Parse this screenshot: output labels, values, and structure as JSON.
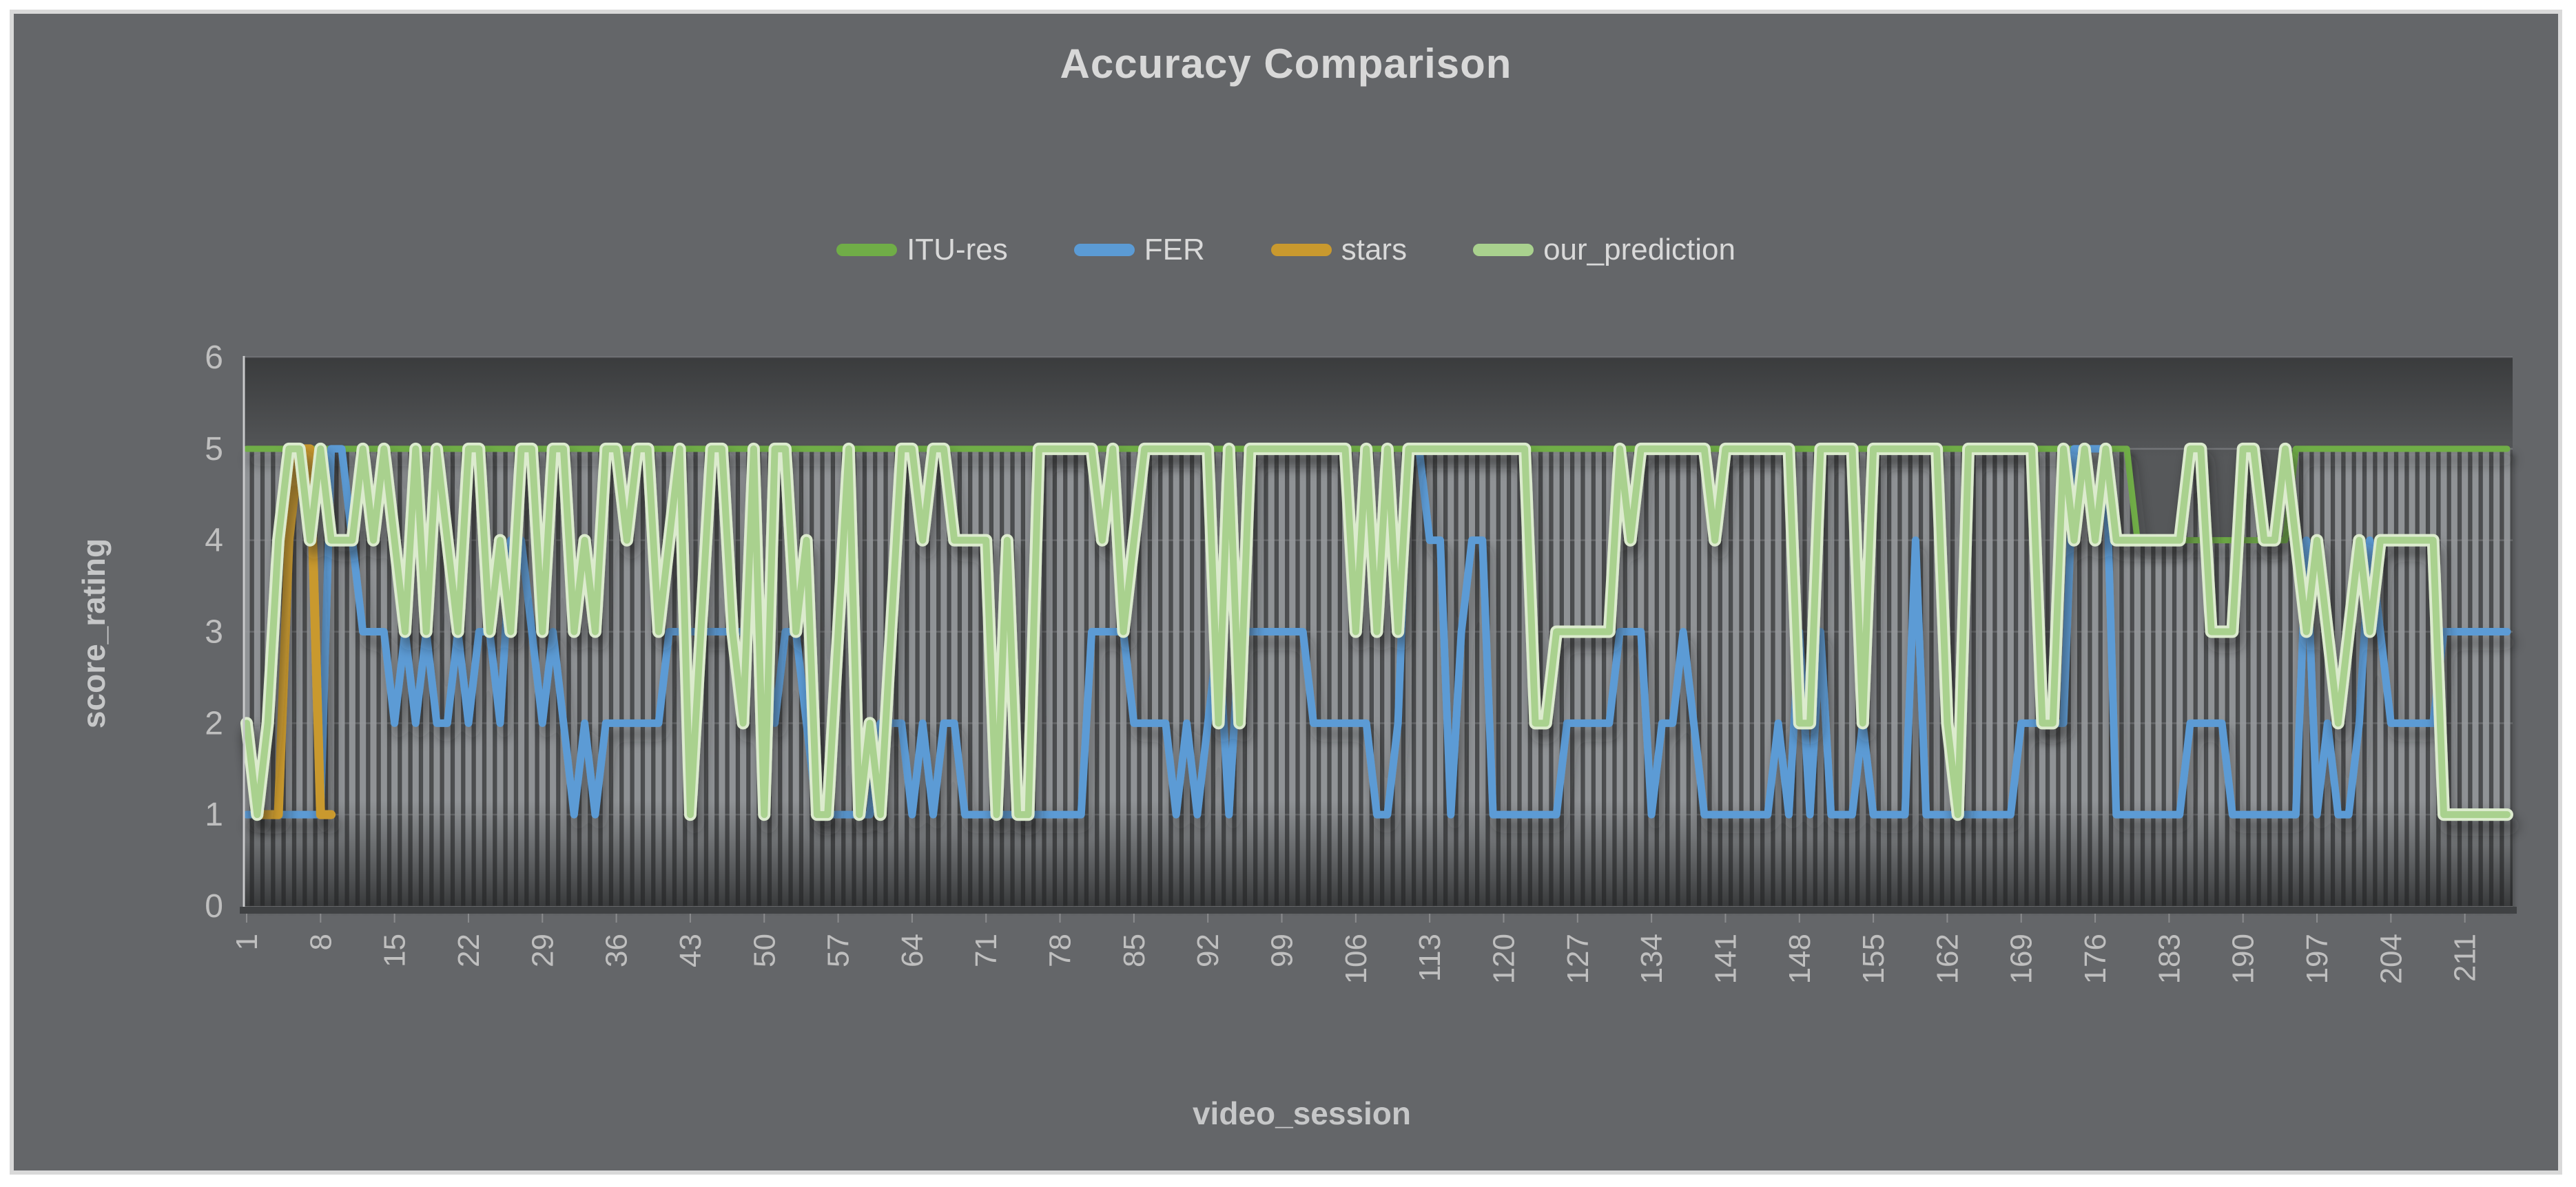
{
  "header": {
    "title": "Accuracy Comparison"
  },
  "axes": {
    "x_title": "video_session",
    "y_title": "score_rating",
    "y_ticks": [
      0,
      1,
      2,
      3,
      4,
      5,
      6
    ],
    "x_ticks": [
      1,
      8,
      15,
      22,
      29,
      36,
      43,
      50,
      57,
      64,
      71,
      78,
      85,
      92,
      99,
      106,
      113,
      120,
      127,
      134,
      141,
      148,
      155,
      162,
      169,
      176,
      183,
      190,
      197,
      204,
      211
    ]
  },
  "legend": {
    "items": [
      {
        "label": "ITU-res",
        "color": "#70AD47"
      },
      {
        "label": "FER",
        "color": "#5B9BD5"
      },
      {
        "label": "stars",
        "color": "#C9992E"
      },
      {
        "label": "our_prediction",
        "color": "#A9D18E"
      }
    ]
  },
  "colors": {
    "chart_background": "#646669",
    "plot_background": "#56585A",
    "dropline": "#96989B",
    "gridline": "#77797C",
    "title_text": "#D8D8D8",
    "tick_text": "#BFBFBF",
    "axis_title_text": "#C6C7C8",
    "x_axis_line": "#3F4143",
    "y_axis_line": "#C8C9CB",
    "frame_border": "#D9D9D9",
    "prediction_casing": "#DCEBCE"
  },
  "chart_data": {
    "type": "line",
    "title": "Accuracy Comparison",
    "xlabel": "video_session",
    "ylabel": "score_rating",
    "x_start": 1,
    "x_end": 215,
    "ylim": [
      0,
      6
    ],
    "grid": true,
    "legend_position": "top",
    "background_style": "category droplines from series maximum to x-axis",
    "series": [
      {
        "name": "ITU-res",
        "color": "#70AD47",
        "values": [
          5,
          5,
          5,
          5,
          5,
          5,
          5,
          5,
          5,
          5,
          5,
          5,
          5,
          5,
          5,
          5,
          5,
          5,
          5,
          5,
          5,
          5,
          5,
          5,
          5,
          5,
          5,
          5,
          5,
          5,
          5,
          5,
          5,
          5,
          5,
          5,
          5,
          5,
          5,
          5,
          5,
          5,
          5,
          5,
          5,
          5,
          5,
          5,
          5,
          5,
          5,
          5,
          5,
          5,
          5,
          5,
          5,
          5,
          5,
          5,
          5,
          5,
          5,
          5,
          5,
          5,
          5,
          5,
          5,
          5,
          5,
          5,
          5,
          5,
          5,
          5,
          5,
          5,
          5,
          5,
          5,
          5,
          5,
          5,
          5,
          5,
          5,
          5,
          5,
          5,
          5,
          5,
          5,
          5,
          5,
          5,
          5,
          5,
          5,
          5,
          5,
          5,
          5,
          5,
          5,
          5,
          5,
          5,
          5,
          5,
          5,
          5,
          5,
          5,
          5,
          5,
          5,
          5,
          5,
          5,
          5,
          5,
          5,
          5,
          5,
          5,
          5,
          5,
          5,
          5,
          5,
          5,
          5,
          5,
          5,
          5,
          5,
          5,
          5,
          5,
          5,
          5,
          5,
          5,
          5,
          5,
          5,
          5,
          5,
          5,
          5,
          5,
          5,
          5,
          5,
          5,
          5,
          5,
          5,
          5,
          5,
          5,
          5,
          5,
          5,
          5,
          5,
          5,
          5,
          5,
          5,
          5,
          5,
          5,
          5,
          5,
          5,
          5,
          5,
          4,
          4,
          4,
          4,
          4,
          4,
          4,
          4,
          4,
          4,
          4,
          4,
          4,
          4,
          4,
          5,
          5,
          5,
          5,
          5,
          5,
          5,
          5,
          5,
          5,
          5,
          5,
          5,
          5,
          5,
          5,
          5,
          5,
          5,
          5,
          5
        ]
      },
      {
        "name": "FER",
        "color": "#5B9BD5",
        "values": [
          1,
          1,
          1,
          1,
          1,
          1,
          1,
          1,
          5,
          5,
          4,
          3,
          3,
          3,
          2,
          3,
          2,
          3,
          2,
          2,
          3,
          2,
          3,
          3,
          2,
          4,
          4,
          3,
          2,
          3,
          2,
          1,
          2,
          1,
          2,
          2,
          2,
          2,
          2,
          2,
          3,
          3,
          3,
          3,
          3,
          3,
          3,
          3,
          3,
          3,
          2,
          3,
          3,
          2,
          1,
          1,
          1,
          1,
          1,
          1,
          2,
          2,
          2,
          1,
          2,
          1,
          2,
          2,
          1,
          1,
          1,
          1,
          1,
          1,
          1,
          1,
          1,
          1,
          1,
          1,
          3,
          3,
          3,
          3,
          2,
          2,
          2,
          2,
          1,
          2,
          1,
          2,
          3,
          1,
          3,
          3,
          3,
          3,
          3,
          3,
          3,
          2,
          2,
          2,
          2,
          2,
          2,
          1,
          1,
          2,
          5,
          5,
          4,
          4,
          1,
          3,
          4,
          4,
          1,
          1,
          1,
          1,
          1,
          1,
          1,
          2,
          2,
          2,
          2,
          2,
          3,
          3,
          3,
          1,
          2,
          2,
          3,
          2,
          1,
          1,
          1,
          1,
          1,
          1,
          1,
          2,
          1,
          3,
          1,
          3,
          1,
          1,
          1,
          2,
          1,
          1,
          1,
          1,
          4,
          1,
          1,
          1,
          1,
          1,
          1,
          1,
          1,
          1,
          2,
          2,
          2,
          2,
          2,
          5,
          5,
          5,
          5,
          1,
          1,
          1,
          1,
          1,
          1,
          1,
          2,
          2,
          2,
          2,
          1,
          1,
          1,
          1,
          1,
          1,
          1,
          4,
          1,
          2,
          1,
          1,
          2,
          4,
          3,
          2,
          2,
          2,
          2,
          2,
          3,
          3,
          3,
          3,
          3,
          3,
          3
        ]
      },
      {
        "name": "stars",
        "color": "#C9992E",
        "values": [
          2,
          1,
          1,
          1,
          4,
          5,
          5,
          1,
          1
        ]
      },
      {
        "name": "our_prediction",
        "color": "#A9D18E",
        "values": [
          2,
          1,
          2,
          4,
          5,
          5,
          4,
          5,
          4,
          4,
          4,
          5,
          4,
          5,
          4,
          3,
          5,
          3,
          5,
          4,
          3,
          5,
          5,
          3,
          4,
          3,
          5,
          5,
          3,
          5,
          5,
          3,
          4,
          3,
          5,
          5,
          4,
          5,
          5,
          3,
          4,
          5,
          1,
          3,
          5,
          5,
          3,
          2,
          5,
          1,
          5,
          5,
          3,
          4,
          1,
          1,
          3,
          5,
          1,
          2,
          1,
          3,
          5,
          5,
          4,
          5,
          5,
          4,
          4,
          4,
          4,
          1,
          4,
          1,
          1,
          5,
          5,
          5,
          5,
          5,
          5,
          4,
          5,
          3,
          4,
          5,
          5,
          5,
          5,
          5,
          5,
          5,
          2,
          5,
          2,
          5,
          5,
          5,
          5,
          5,
          5,
          5,
          5,
          5,
          5,
          3,
          5,
          3,
          5,
          3,
          5,
          5,
          5,
          5,
          5,
          5,
          5,
          5,
          5,
          5,
          5,
          5,
          2,
          2,
          3,
          3,
          3,
          3,
          3,
          3,
          5,
          4,
          5,
          5,
          5,
          5,
          5,
          5,
          5,
          4,
          5,
          5,
          5,
          5,
          5,
          5,
          5,
          2,
          2,
          5,
          5,
          5,
          5,
          2,
          5,
          5,
          5,
          5,
          5,
          5,
          5,
          2,
          1,
          5,
          5,
          5,
          5,
          5,
          5,
          5,
          2,
          2,
          5,
          4,
          5,
          4,
          5,
          4,
          4,
          4,
          4,
          4,
          4,
          4,
          5,
          5,
          3,
          3,
          3,
          5,
          5,
          4,
          4,
          5,
          4,
          3,
          4,
          3,
          2,
          3,
          4,
          3,
          4,
          4,
          4,
          4,
          4,
          4,
          1,
          1,
          1,
          1,
          1,
          1,
          1
        ]
      }
    ]
  }
}
